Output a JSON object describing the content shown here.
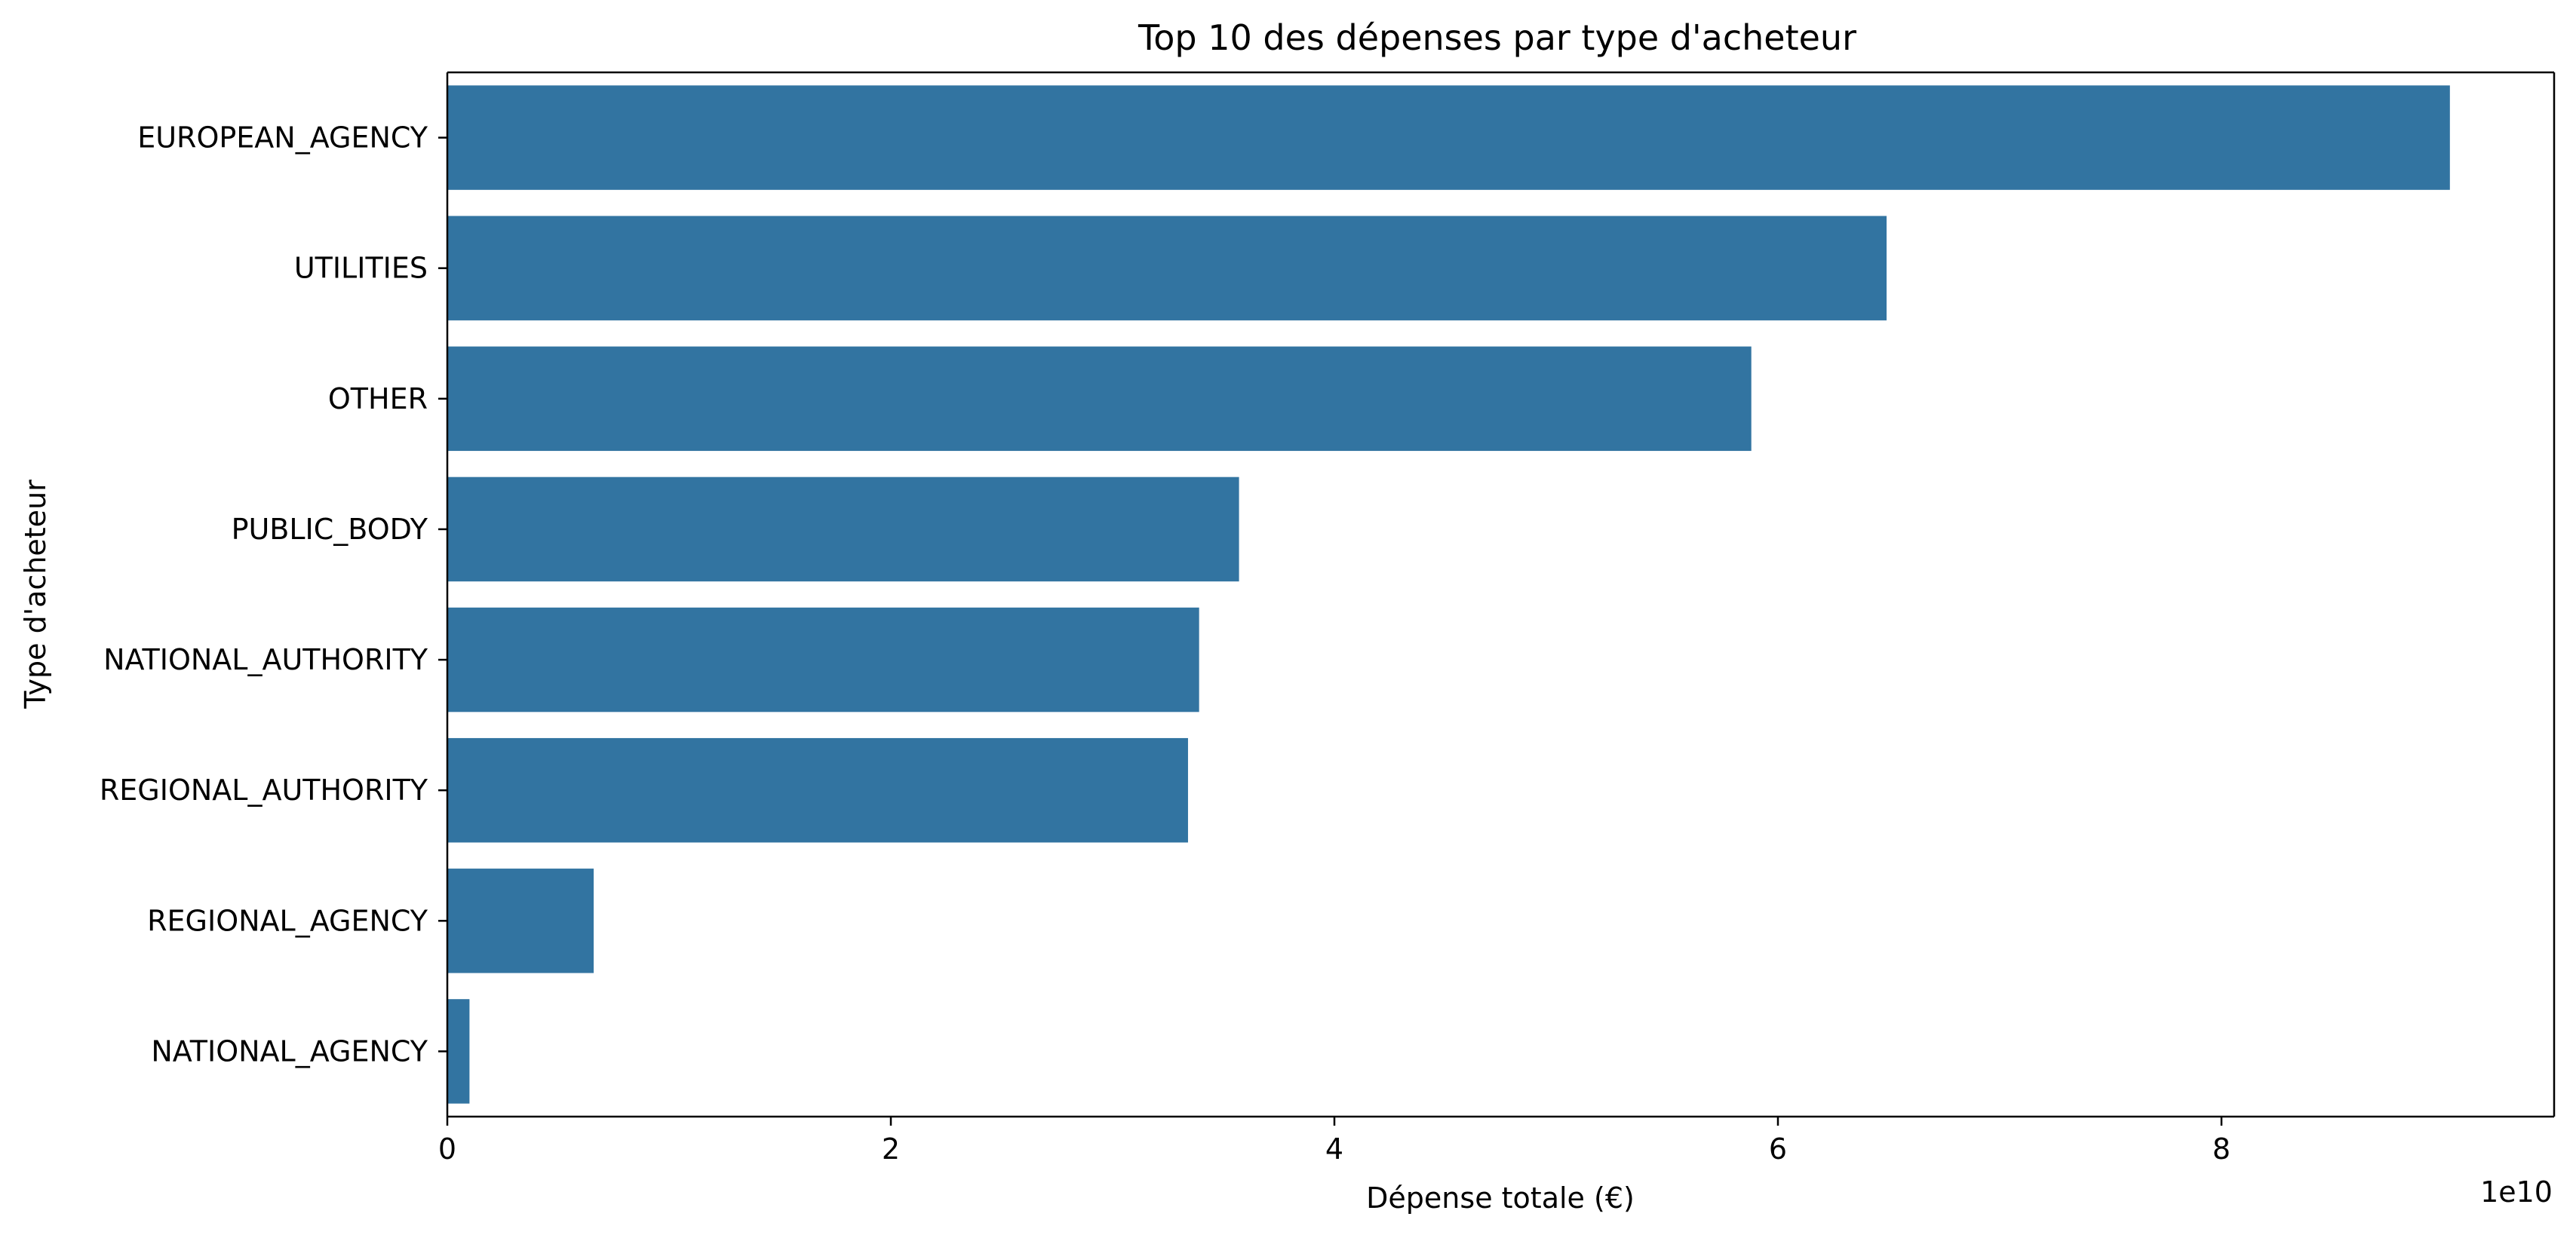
{
  "chart_data": {
    "type": "bar",
    "orientation": "horizontal",
    "title": "Top 10 des dépenses par type d'acheteur",
    "xlabel": "Dépense totale (€)",
    "ylabel": "Type d'acheteur",
    "x_offset_label": "1e10",
    "categories": [
      "EUROPEAN_AGENCY",
      "UTILITIES",
      "OTHER",
      "PUBLIC_BODY",
      "NATIONAL_AUTHORITY",
      "REGIONAL_AUTHORITY",
      "REGIONAL_AGENCY",
      "NATIONAL_AGENCY"
    ],
    "values": [
      90300000000,
      64900000000,
      58800000000,
      35700000000,
      33900000000,
      33400000000,
      6600000000,
      1000000000
    ],
    "xlim": [
      0,
      95000000000
    ],
    "x_ticks": [
      0,
      20000000000,
      40000000000,
      60000000000,
      80000000000
    ],
    "x_tick_labels": [
      "0",
      "2",
      "4",
      "6",
      "8"
    ],
    "grid": false,
    "colors": {
      "bar": "#3274a1",
      "axis": "#000000",
      "text": "#000000"
    }
  }
}
